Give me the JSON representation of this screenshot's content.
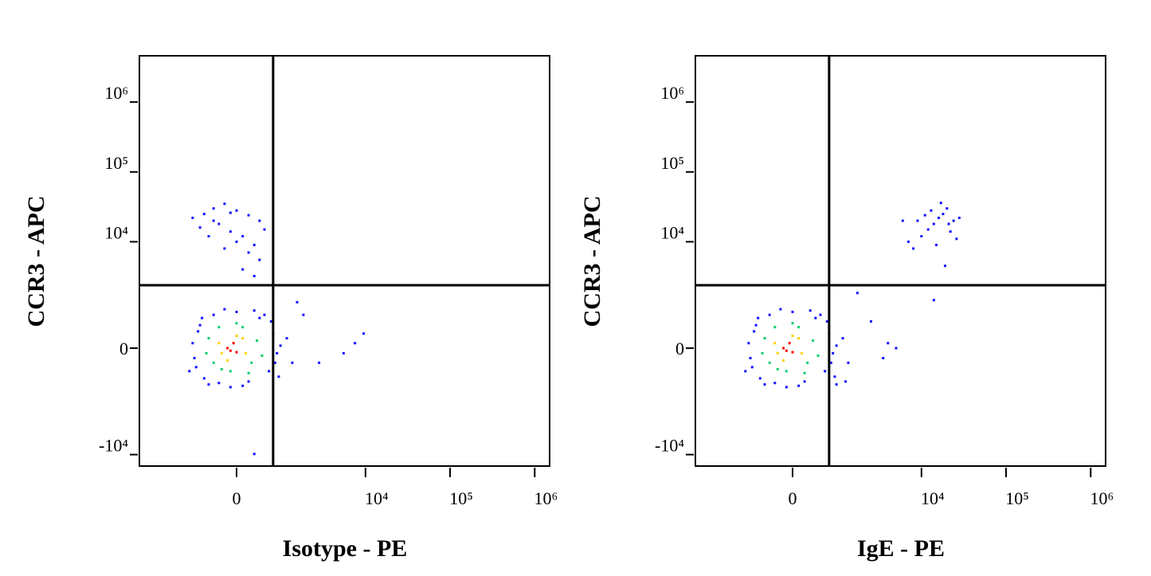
{
  "chart_data": [
    {
      "type": "scatter",
      "xlabel": "Isotype - PE",
      "ylabel": "CCR3 - APC",
      "xscale": "asinh",
      "yscale": "asinh",
      "xlim": [
        -4200,
        1500000
      ],
      "ylim": [
        -14600,
        4600000
      ],
      "xticks": [
        0,
        {
          "value": 10000,
          "label": "10⁴"
        },
        {
          "value": 100000,
          "label": "10⁵"
        },
        {
          "value": 1000000,
          "label": "10⁶"
        }
      ],
      "yticks": [
        {
          "value": -10000,
          "label": "-10⁴"
        },
        0,
        {
          "value": 10000,
          "label": "10⁴"
        },
        {
          "value": 100000,
          "label": "10⁵"
        },
        {
          "value": 1000000,
          "label": "10⁶"
        }
      ],
      "quadrant_gate": {
        "x": 700,
        "y": 2350
      },
      "series": [
        {
          "color": "#1010ff",
          "x": [
            -900,
            -800,
            -700,
            -600,
            -400,
            -300,
            0,
            200,
            400,
            600,
            700,
            800,
            -850,
            -650,
            -500,
            100,
            500,
            750,
            900,
            -750,
            -200,
            300,
            650,
            -100,
            1100,
            1300,
            -1000,
            850,
            1800,
            2800,
            5500,
            7500,
            9500,
            300,
            1500,
            -900,
            -600,
            -400,
            -200,
            0,
            200,
            400,
            500,
            -300,
            -100,
            100,
            300,
            -500,
            -700,
            0,
            200,
            400,
            -200,
            100,
            300,
            -400,
            -100
          ],
          "values": [
            100,
            -400,
            500,
            -700,
            800,
            -850,
            900,
            -800,
            700,
            -500,
            300,
            -100,
            -200,
            700,
            -900,
            -950,
            800,
            -300,
            50,
            350,
            1000,
            950,
            600,
            -1000,
            200,
            -300,
            -500,
            -650,
            800,
            -300,
            -100,
            100,
            300,
            -9800,
            1300,
            22000,
            25000,
            30000,
            35000,
            28000,
            24000,
            20000,
            15000,
            18000,
            14000,
            12000,
            9000,
            12000,
            16000,
            10000,
            7000,
            5500,
            8000,
            4000,
            3200,
            20000,
            26000
          ]
        },
        {
          "color": "#00d070",
          "x": [
            -500,
            -400,
            -300,
            -100,
            100,
            250,
            350,
            -550,
            0,
            200,
            -250,
            450
          ],
          "values": [
            200,
            -300,
            450,
            -500,
            450,
            -300,
            150,
            -100,
            550,
            -550,
            -450,
            -150
          ]
        },
        {
          "color": "#ffd000",
          "x": [
            -300,
            -150,
            0,
            150,
            -250,
            100
          ],
          "values": [
            100,
            -250,
            250,
            -100,
            -100,
            200
          ]
        },
        {
          "color": "#ff0000",
          "x": [
            -150,
            -50,
            0,
            -100
          ],
          "values": [
            0,
            100,
            -80,
            -50
          ]
        }
      ]
    },
    {
      "type": "scatter",
      "xlabel": "IgE - PE",
      "ylabel": "CCR3 - APC",
      "xscale": "asinh",
      "yscale": "asinh",
      "xlim": [
        -4200,
        1500000
      ],
      "ylim": [
        -14600,
        4600000
      ],
      "xticks": [
        0,
        {
          "value": 10000,
          "label": "10⁴"
        },
        {
          "value": 100000,
          "label": "10⁵"
        },
        {
          "value": 1000000,
          "label": "10⁶"
        }
      ],
      "yticks": [
        {
          "value": -10000,
          "label": "-10⁴"
        },
        0,
        {
          "value": 10000,
          "label": "10⁴"
        },
        {
          "value": 100000,
          "label": "10⁵"
        },
        {
          "value": 1000000,
          "label": "10⁶"
        }
      ],
      "quadrant_gate": {
        "x": 700,
        "y": 2350
      },
      "series": [
        {
          "color": "#1010ff",
          "x": [
            -900,
            -800,
            -700,
            -600,
            -400,
            -300,
            0,
            200,
            400,
            600,
            700,
            800,
            -850,
            -650,
            -500,
            100,
            500,
            750,
            900,
            -750,
            -200,
            300,
            650,
            -100,
            1100,
            1300,
            -1000,
            850,
            1700,
            2500,
            3500,
            4000,
            5000,
            1200,
            900,
            9000,
            6000,
            7000,
            8000,
            10000,
            12000,
            14000,
            16000,
            18000,
            20000,
            22000,
            24000,
            26000,
            15000,
            19000,
            11000,
            13000,
            21000,
            28000,
            17000,
            14000
          ],
          "values": [
            100,
            -400,
            500,
            -700,
            800,
            -850,
            900,
            -800,
            700,
            -500,
            300,
            -100,
            -200,
            700,
            -900,
            -950,
            800,
            -300,
            50,
            350,
            1000,
            950,
            600,
            -1000,
            200,
            -300,
            -500,
            -650,
            1800,
            600,
            -200,
            100,
            0,
            -800,
            -900,
            20000,
            20000,
            10000,
            8000,
            12000,
            15000,
            18000,
            22000,
            25000,
            30000,
            14000,
            20000,
            11000,
            9000,
            4500,
            24000,
            28000,
            18000,
            22000,
            36000,
            1400
          ]
        },
        {
          "color": "#00d070",
          "x": [
            -500,
            -400,
            -300,
            -100,
            100,
            250,
            350,
            -550,
            0,
            200,
            -250,
            450
          ],
          "values": [
            200,
            -300,
            450,
            -500,
            450,
            -300,
            150,
            -100,
            550,
            -550,
            -450,
            -150
          ]
        },
        {
          "color": "#ffd000",
          "x": [
            -300,
            -150,
            0,
            150,
            -250,
            100
          ],
          "values": [
            100,
            -250,
            250,
            -100,
            -100,
            200
          ]
        },
        {
          "color": "#ff0000",
          "x": [
            -150,
            -50,
            0,
            -100
          ],
          "values": [
            0,
            100,
            -80,
            -50
          ]
        }
      ]
    }
  ]
}
